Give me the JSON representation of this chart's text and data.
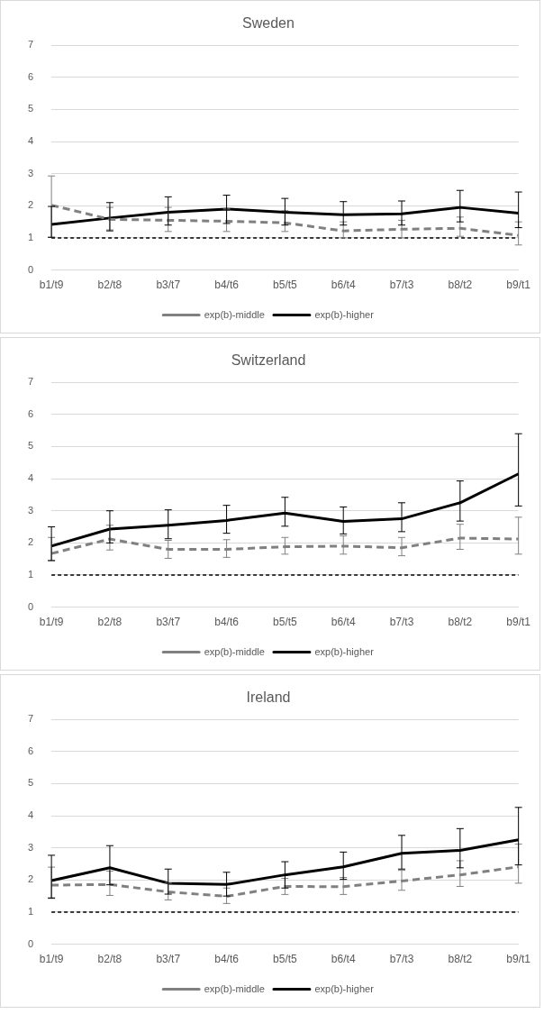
{
  "chart_data": [
    {
      "type": "line",
      "title": "Sweden",
      "categories": [
        "b1/t9",
        "b2/t8",
        "b3/t7",
        "b4/t6",
        "b5/t5",
        "b6/t4",
        "b7/t3",
        "b8/t2",
        "b9/t1"
      ],
      "ylim": [
        0,
        7
      ],
      "yticks": [
        0,
        1,
        2,
        3,
        4,
        5,
        6,
        7
      ],
      "grid": "y",
      "legend": "bottom",
      "marker": "none",
      "ref_lines": [
        {
          "axis": "y",
          "value": 1,
          "color": "#000000",
          "line_style": "dashed"
        }
      ],
      "series": [
        {
          "name": "exp(b)-middle",
          "color": "#808080",
          "line_style": "dashed",
          "values": [
            2.02,
            1.58,
            1.55,
            1.52,
            1.47,
            1.22,
            1.27,
            1.3,
            1.08
          ],
          "errors": [
            [
              1.02,
              2.93
            ],
            [
              1.25,
              1.95
            ],
            [
              1.2,
              1.95
            ],
            [
              1.2,
              1.9
            ],
            [
              1.2,
              1.85
            ],
            [
              1.0,
              1.5
            ],
            [
              1.0,
              1.55
            ],
            [
              1.05,
              1.65
            ],
            [
              0.78,
              1.5
            ]
          ]
        },
        {
          "name": "exp(b)-higher",
          "color": "#000000",
          "line_style": "solid",
          "values": [
            1.42,
            1.62,
            1.8,
            1.9,
            1.8,
            1.72,
            1.75,
            1.95,
            1.77
          ],
          "errors": [
            [
              1.02,
              1.98
            ],
            [
              1.22,
              2.1
            ],
            [
              1.4,
              2.28
            ],
            [
              1.45,
              2.33
            ],
            [
              1.4,
              2.23
            ],
            [
              1.4,
              2.13
            ],
            [
              1.4,
              2.15
            ],
            [
              1.5,
              2.48
            ],
            [
              1.32,
              2.43
            ]
          ]
        }
      ]
    },
    {
      "type": "line",
      "title": "Switzerland",
      "categories": [
        "b1/t9",
        "b2/t8",
        "b3/t7",
        "b4/t6",
        "b5/t5",
        "b6/t4",
        "b7/t3",
        "b8/t2",
        "b9/t1"
      ],
      "ylim": [
        0,
        7
      ],
      "yticks": [
        0,
        1,
        2,
        3,
        4,
        5,
        6,
        7
      ],
      "grid": "y",
      "legend": "bottom",
      "marker": "none",
      "ref_lines": [
        {
          "axis": "y",
          "value": 1,
          "color": "#000000",
          "line_style": "dashed"
        }
      ],
      "series": [
        {
          "name": "exp(b)-middle",
          "color": "#808080",
          "line_style": "dashed",
          "values": [
            1.67,
            2.12,
            1.8,
            1.8,
            1.88,
            1.9,
            1.85,
            2.15,
            2.12
          ],
          "errors": [
            [
              1.45,
              2.17
            ],
            [
              1.78,
              2.55
            ],
            [
              1.52,
              2.08
            ],
            [
              1.55,
              2.1
            ],
            [
              1.65,
              2.17
            ],
            [
              1.65,
              2.22
            ],
            [
              1.6,
              2.17
            ],
            [
              1.8,
              2.58
            ],
            [
              1.65,
              2.8
            ]
          ]
        },
        {
          "name": "exp(b)-higher",
          "color": "#000000",
          "line_style": "solid",
          "values": [
            1.9,
            2.43,
            2.55,
            2.7,
            2.93,
            2.67,
            2.75,
            3.25,
            4.15
          ],
          "errors": [
            [
              1.45,
              2.5
            ],
            [
              2.0,
              3.0
            ],
            [
              2.13,
              3.03
            ],
            [
              2.3,
              3.17
            ],
            [
              2.52,
              3.42
            ],
            [
              2.28,
              3.12
            ],
            [
              2.35,
              3.25
            ],
            [
              2.68,
              3.93
            ],
            [
              3.15,
              5.4
            ]
          ]
        }
      ]
    },
    {
      "type": "line",
      "title": "Ireland",
      "categories": [
        "b1/t9",
        "b2/t8",
        "b3/t7",
        "b4/t6",
        "b5/t5",
        "b6/t4",
        "b7/t3",
        "b8/t2",
        "b9/t1"
      ],
      "ylim": [
        0,
        7
      ],
      "yticks": [
        0,
        1,
        2,
        3,
        4,
        5,
        6,
        7
      ],
      "grid": "y",
      "legend": "bottom",
      "marker": "none",
      "ref_lines": [
        {
          "axis": "y",
          "value": 1,
          "color": "#000000",
          "line_style": "dashed"
        }
      ],
      "series": [
        {
          "name": "exp(b)-middle",
          "color": "#808080",
          "line_style": "dashed",
          "values": [
            1.84,
            1.86,
            1.63,
            1.49,
            1.8,
            1.79,
            1.97,
            2.16,
            2.41
          ],
          "errors": [
            [
              1.45,
              2.4
            ],
            [
              1.52,
              2.28
            ],
            [
              1.38,
              1.9
            ],
            [
              1.27,
              1.75
            ],
            [
              1.55,
              2.05
            ],
            [
              1.55,
              2.08
            ],
            [
              1.68,
              2.3
            ],
            [
              1.8,
              2.6
            ],
            [
              1.9,
              3.12
            ]
          ]
        },
        {
          "name": "exp(b)-higher",
          "color": "#000000",
          "line_style": "solid",
          "values": [
            1.98,
            2.38,
            1.9,
            1.86,
            2.16,
            2.41,
            2.83,
            2.92,
            3.25
          ],
          "errors": [
            [
              1.43,
              2.77
            ],
            [
              1.85,
              3.07
            ],
            [
              1.56,
              2.34
            ],
            [
              1.5,
              2.24
            ],
            [
              1.75,
              2.57
            ],
            [
              2.02,
              2.87
            ],
            [
              2.34,
              3.39
            ],
            [
              2.38,
              3.6
            ],
            [
              2.47,
              4.26
            ]
          ]
        }
      ]
    }
  ]
}
